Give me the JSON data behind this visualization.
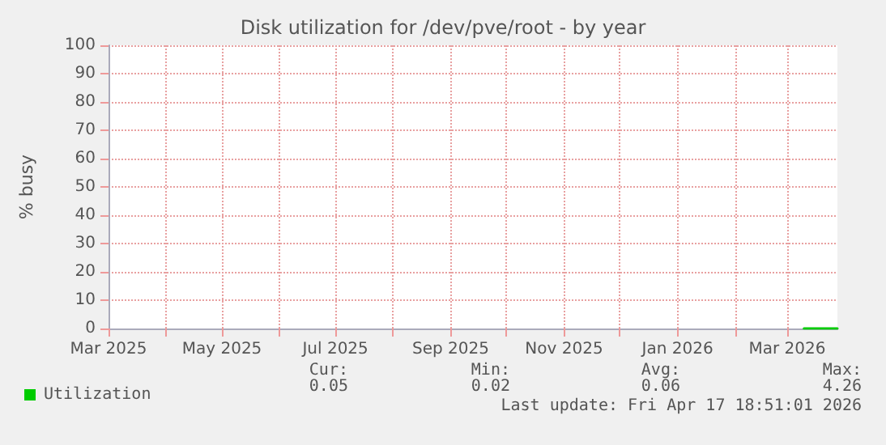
{
  "chart_data": {
    "type": "line",
    "title": "Disk utilization for /dev/pve/root - by year",
    "ylabel": "% busy",
    "x": [
      "2026-03-10",
      "2026-03-16",
      "2026-03-22",
      "2026-03-28"
    ],
    "series": [
      {
        "name": "Utilization",
        "color": "#00cc00",
        "values": [
          0,
          0,
          0,
          0
        ]
      }
    ],
    "xlim": [
      "2025-03-01",
      "2026-03-28"
    ],
    "xticks": [
      {
        "value": "2025-03-01",
        "label": "Mar 2025"
      },
      {
        "value": "2025-04-01",
        "label": null
      },
      {
        "value": "2025-05-01",
        "label": "May 2025"
      },
      {
        "value": "2025-06-01",
        "label": null
      },
      {
        "value": "2025-07-01",
        "label": "Jul 2025"
      },
      {
        "value": "2025-08-01",
        "label": null
      },
      {
        "value": "2025-09-01",
        "label": "Sep 2025"
      },
      {
        "value": "2025-10-01",
        "label": null
      },
      {
        "value": "2025-11-01",
        "label": "Nov 2025"
      },
      {
        "value": "2025-12-01",
        "label": null
      },
      {
        "value": "2026-01-01",
        "label": "Jan 2026"
      },
      {
        "value": "2026-02-01",
        "label": null
      },
      {
        "value": "2026-03-01",
        "label": "Mar 2026"
      }
    ],
    "ylim": [
      0,
      100
    ],
    "yticks": [
      0,
      10,
      20,
      30,
      40,
      50,
      60,
      70,
      80,
      90,
      100
    ],
    "grid": true,
    "legend": "bottom left",
    "marker": "none",
    "line_style": "solid",
    "annotations": [
      "Cur:",
      "Min:",
      "Avg:",
      "Max:",
      "0.05",
      "0.02",
      "0.06",
      "4.26",
      "Last update: Fri Apr 17 18:51:01 2026"
    ]
  }
}
